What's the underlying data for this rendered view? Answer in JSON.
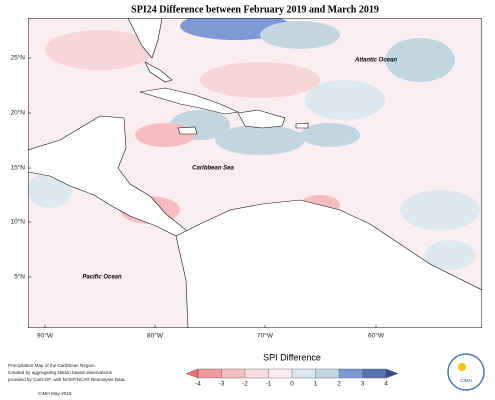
{
  "title": "SPI24 Difference between February 2019 and March 2019",
  "oceans": [
    "Atlantic Ocean",
    "Caribbean Sea",
    "Pacific Ocean"
  ],
  "lat_ticks": [
    "25°N",
    "20°N",
    "15°N",
    "10°N",
    "5°N"
  ],
  "lon_ticks": [
    "90°W",
    "80°W",
    "70°W",
    "60°W"
  ],
  "colorbar": {
    "title": "SPI Difference",
    "ticks": [
      -4,
      -3,
      -2,
      -1,
      0,
      1,
      2,
      3,
      4
    ],
    "colors": [
      "#f0707a",
      "#f39aa0",
      "#f7bcc0",
      "#fbdde0",
      "#fbeef0",
      "#dde7ee",
      "#c2d6e2",
      "#7e99d6",
      "#5a72b5",
      "#3a4a8a"
    ]
  },
  "footnote": [
    "Precipitation Map of the Caribbean Region.",
    "Created by aggregating station based observations",
    "provided by CariCOF, with NCEP/NCAR Reanalysis Data."
  ],
  "credit": "CIMH May-2019",
  "logo": "CIMH"
}
